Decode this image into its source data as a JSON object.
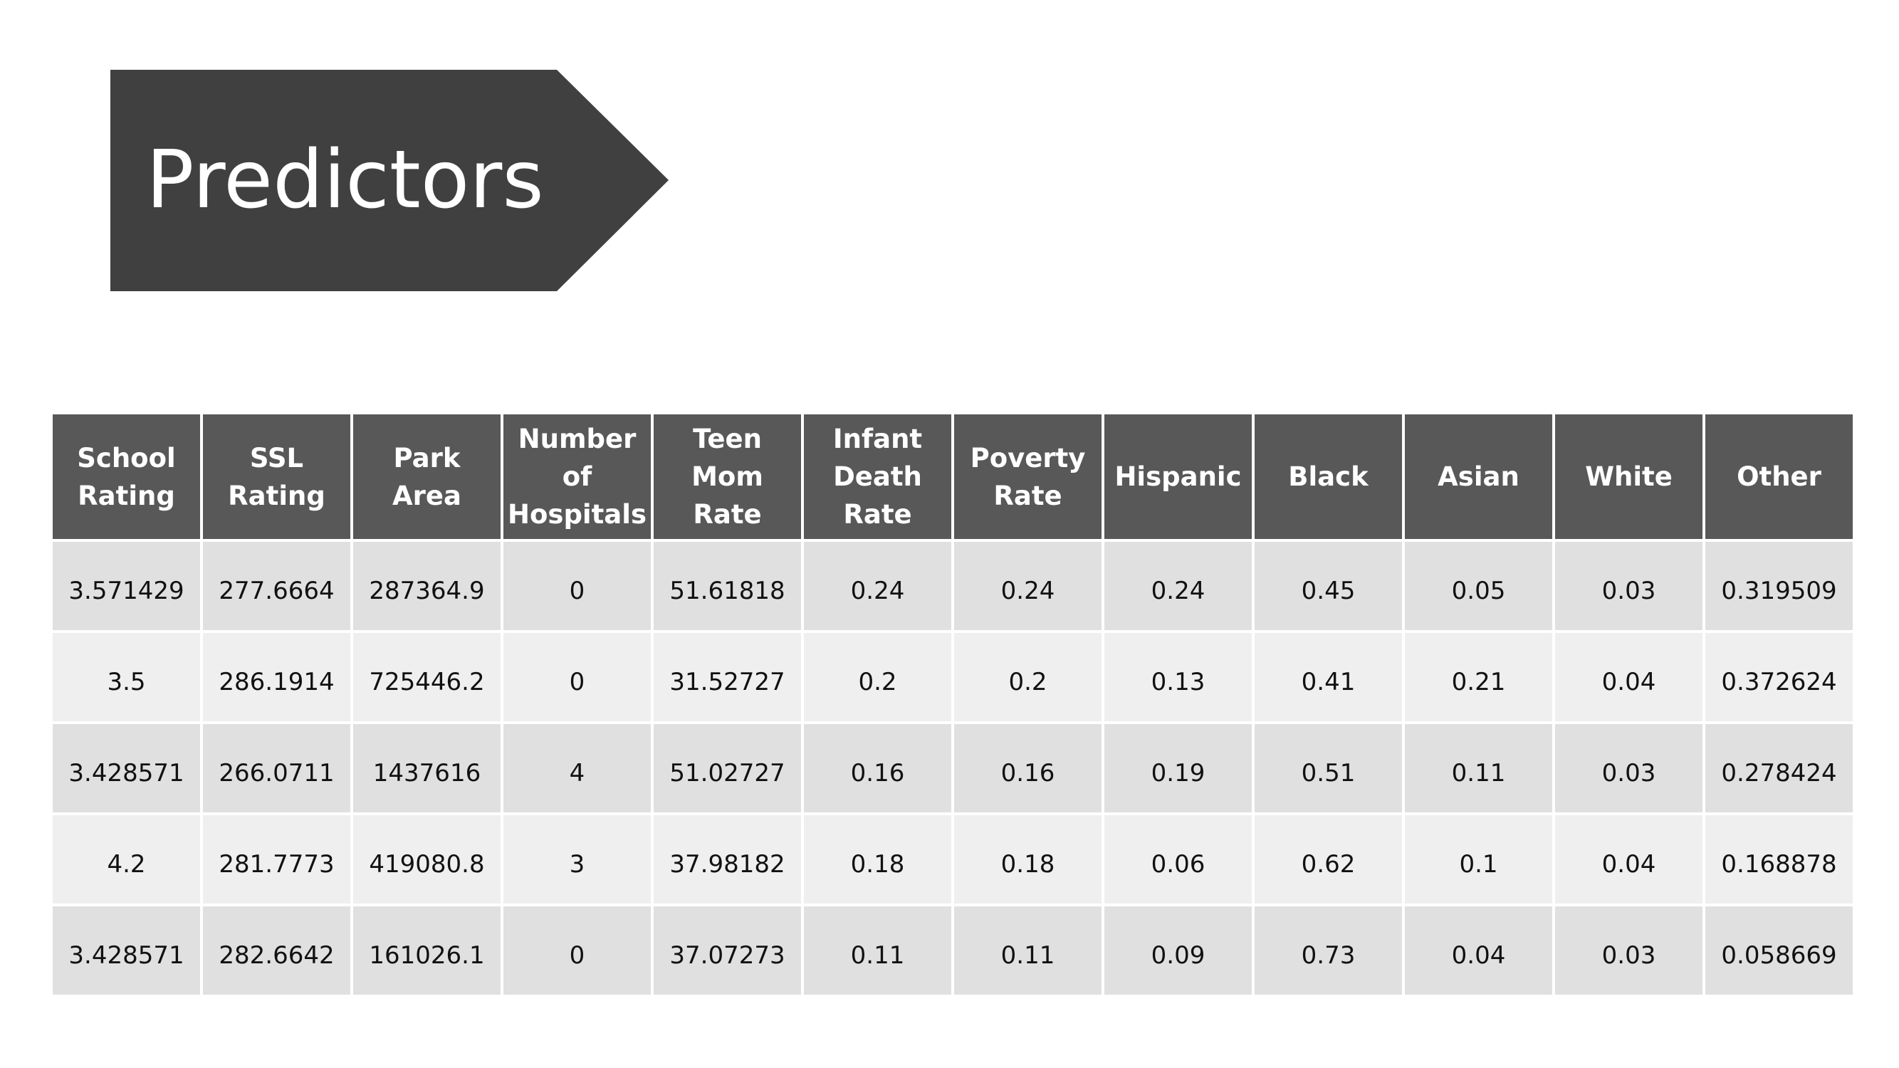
{
  "slide": {
    "title": "Predictors"
  },
  "table": {
    "columns": [
      "School Rating",
      "SSL Rating",
      "Park Area",
      "Number of Hospitals",
      "Teen Mom Rate",
      "Infant Death Rate",
      "Poverty Rate",
      "Hispanic",
      "Black",
      "Asian",
      "White",
      "Other"
    ],
    "rows": [
      [
        "3.571429",
        "277.6664",
        "287364.9",
        "0",
        "51.61818",
        "0.24",
        "0.24",
        "0.24",
        "0.45",
        "0.05",
        "0.03",
        "0.319509"
      ],
      [
        "3.5",
        "286.1914",
        "725446.2",
        "0",
        "31.52727",
        "0.2",
        "0.2",
        "0.13",
        "0.41",
        "0.21",
        "0.04",
        "0.372624"
      ],
      [
        "3.428571",
        "266.0711",
        "1437616",
        "4",
        "51.02727",
        "0.16",
        "0.16",
        "0.19",
        "0.51",
        "0.11",
        "0.03",
        "0.278424"
      ],
      [
        "4.2",
        "281.7773",
        "419080.8",
        "3",
        "37.98182",
        "0.18",
        "0.18",
        "0.06",
        "0.62",
        "0.1",
        "0.04",
        "0.168878"
      ],
      [
        "3.428571",
        "282.6642",
        "161026.1",
        "0",
        "37.07273",
        "0.11",
        "0.11",
        "0.09",
        "0.73",
        "0.04",
        "0.03",
        "0.058669"
      ]
    ]
  },
  "colors": {
    "banner": "#404040",
    "header": "#585858",
    "row_odd": "#e0e0e0",
    "row_even": "#efefef"
  }
}
